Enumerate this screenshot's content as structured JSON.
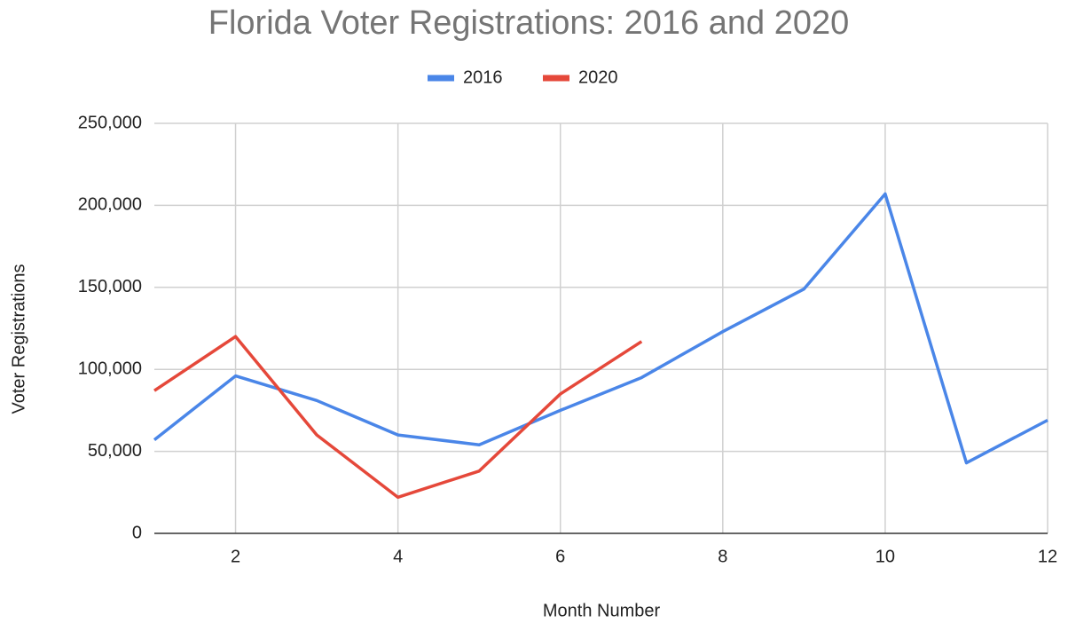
{
  "chart_data": {
    "type": "line",
    "title": "Florida Voter Registrations: 2016 and 2020",
    "x_label": "Month Number",
    "y_label": "Voter Registrations",
    "x": [
      1,
      2,
      3,
      4,
      5,
      6,
      7,
      8,
      9,
      10,
      11,
      12
    ],
    "series": [
      {
        "name": "2016",
        "color": "#4a86e8",
        "values": [
          57000,
          96000,
          81000,
          60000,
          54000,
          75000,
          95000,
          123000,
          149000,
          207000,
          43000,
          69000
        ]
      },
      {
        "name": "2020",
        "color": "#e5483a",
        "values": [
          87000,
          120000,
          60000,
          22000,
          38000,
          85000,
          117000,
          null,
          null,
          null,
          null,
          null
        ]
      }
    ],
    "xlim": [
      1,
      12
    ],
    "xticks": [
      2,
      4,
      6,
      8,
      10,
      12
    ],
    "ylim": [
      0,
      250000
    ],
    "yticks": [
      0,
      {
        "value": 50000,
        "label": "50,000"
      },
      {
        "value": 100000,
        "label": "100,000"
      },
      {
        "value": 150000,
        "label": "150,000"
      },
      {
        "value": 200000,
        "label": "200,000"
      },
      {
        "value": 250000,
        "label": "250,000"
      }
    ],
    "grid": true,
    "legend": "top"
  }
}
